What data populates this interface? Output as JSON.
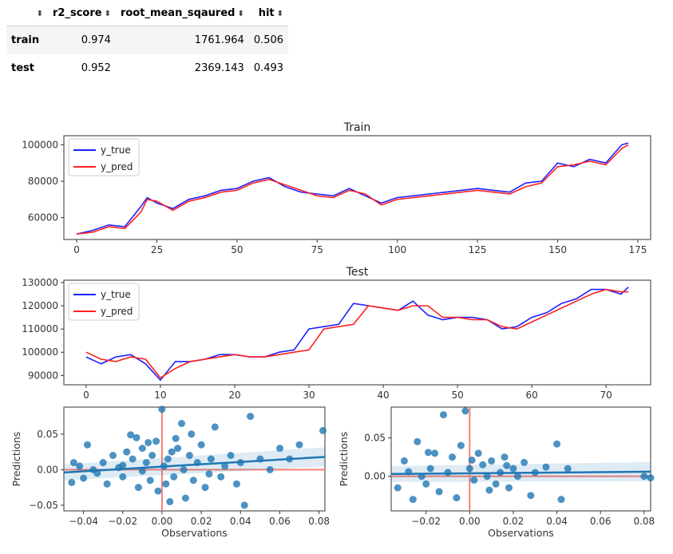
{
  "table": {
    "columns": [
      "r2_score",
      "root_mean_sqaured",
      "hit"
    ],
    "rows": [
      {
        "label": "train",
        "values": [
          "0.974",
          "1761.964",
          "0.506"
        ]
      },
      {
        "label": "test",
        "values": [
          "0.952",
          "2369.143",
          "0.493"
        ]
      }
    ],
    "sort_glyph": "⬍"
  },
  "colors": {
    "y_true": "#1f1fff",
    "y_pred": "#ff2020",
    "scatter": "#1f77b4",
    "reg": "#1f77b4",
    "ref": "#fa8072"
  },
  "chart_data": [
    {
      "type": "line",
      "title": "Train",
      "xlim": [
        -4,
        179
      ],
      "ylim": [
        48000,
        105000
      ],
      "xticks": [
        0,
        25,
        50,
        75,
        100,
        125,
        150,
        175
      ],
      "yticks": [
        60000,
        80000,
        100000
      ],
      "legend": "upper-left",
      "series": [
        {
          "name": "y_true",
          "x": [
            0,
            5,
            10,
            15,
            20,
            22,
            25,
            30,
            35,
            40,
            45,
            50,
            55,
            60,
            65,
            70,
            75,
            80,
            85,
            90,
            95,
            100,
            105,
            110,
            115,
            120,
            125,
            130,
            135,
            140,
            145,
            150,
            155,
            160,
            165,
            170,
            172
          ],
          "values": [
            51000,
            53000,
            56000,
            55000,
            66000,
            71000,
            68000,
            65000,
            70000,
            72000,
            75000,
            76000,
            80000,
            82000,
            77000,
            74000,
            73000,
            72000,
            76000,
            72000,
            68000,
            71000,
            72000,
            73000,
            74000,
            75000,
            76000,
            75000,
            74000,
            79000,
            80000,
            90000,
            88000,
            92000,
            90000,
            100000,
            101000
          ]
        },
        {
          "name": "y_pred",
          "x": [
            0,
            5,
            10,
            15,
            20,
            22,
            25,
            30,
            35,
            40,
            45,
            50,
            55,
            60,
            65,
            70,
            75,
            80,
            85,
            90,
            95,
            100,
            105,
            110,
            115,
            120,
            125,
            130,
            135,
            140,
            145,
            150,
            155,
            160,
            165,
            170,
            172
          ],
          "values": [
            51000,
            52000,
            55000,
            54000,
            63000,
            70000,
            69000,
            64000,
            69000,
            71000,
            74000,
            75000,
            79000,
            81000,
            78000,
            75000,
            72000,
            71000,
            75000,
            73000,
            67000,
            70000,
            71000,
            72000,
            73000,
            74000,
            75000,
            74000,
            73000,
            77000,
            79000,
            88000,
            89000,
            91000,
            89000,
            98000,
            100000
          ]
        }
      ]
    },
    {
      "type": "line",
      "title": "Test",
      "xlim": [
        -3,
        76
      ],
      "ylim": [
        86000,
        131000
      ],
      "xticks": [
        0,
        10,
        20,
        30,
        40,
        50,
        60,
        70
      ],
      "yticks": [
        90000,
        100000,
        110000,
        120000,
        130000
      ],
      "legend": "upper-left",
      "series": [
        {
          "name": "y_true",
          "x": [
            0,
            2,
            4,
            6,
            8,
            10,
            12,
            14,
            16,
            18,
            20,
            22,
            24,
            26,
            28,
            30,
            32,
            34,
            36,
            38,
            40,
            42,
            44,
            46,
            48,
            50,
            52,
            54,
            56,
            58,
            60,
            62,
            64,
            66,
            68,
            70,
            72,
            73
          ],
          "values": [
            98000,
            95000,
            98000,
            99000,
            95000,
            88000,
            96000,
            96000,
            97000,
            99000,
            99000,
            98000,
            98000,
            100000,
            101000,
            110000,
            111000,
            112000,
            121000,
            120000,
            119000,
            118000,
            122000,
            116000,
            114000,
            115000,
            115000,
            114000,
            110000,
            111000,
            115000,
            117000,
            121000,
            123000,
            127000,
            127000,
            125000,
            128000
          ]
        },
        {
          "name": "y_pred",
          "x": [
            0,
            2,
            4,
            6,
            8,
            10,
            12,
            14,
            16,
            18,
            20,
            22,
            24,
            26,
            28,
            30,
            32,
            34,
            36,
            38,
            40,
            42,
            44,
            46,
            48,
            50,
            52,
            54,
            56,
            58,
            60,
            62,
            64,
            66,
            68,
            70,
            72,
            73
          ],
          "values": [
            100000,
            97000,
            96000,
            98000,
            97000,
            89000,
            93000,
            96000,
            97000,
            98000,
            99000,
            98000,
            98000,
            99000,
            100000,
            101000,
            110000,
            111000,
            112000,
            120000,
            119000,
            118000,
            120000,
            120000,
            115000,
            115000,
            114000,
            114000,
            111000,
            110000,
            113000,
            116000,
            119000,
            122000,
            125000,
            127000,
            126000,
            126000
          ]
        }
      ]
    },
    {
      "type": "scatter",
      "xlabel": "Observations",
      "ylabel": "Predictions",
      "xlim": [
        -0.05,
        0.083
      ],
      "ylim": [
        -0.058,
        0.088
      ],
      "xticks": [
        -0.04,
        -0.02,
        0.0,
        0.02,
        0.04,
        0.06,
        0.08
      ],
      "xtick_labels": [
        "−0.04",
        "−0.02",
        "0.00",
        "0.02",
        "0.04",
        "0.06",
        "0.08"
      ],
      "yticks": [
        -0.05,
        0.0,
        0.05
      ],
      "ytick_labels": [
        "−0.05",
        "0.00",
        "0.05"
      ],
      "regression": {
        "x": [
          -0.05,
          0.083
        ],
        "y": [
          -0.004,
          0.018
        ]
      },
      "points": [
        [
          -0.045,
          0.01
        ],
        [
          -0.042,
          0.005
        ],
        [
          -0.04,
          -0.012
        ],
        [
          -0.038,
          0.035
        ],
        [
          -0.035,
          0.0
        ],
        [
          -0.033,
          -0.005
        ],
        [
          -0.03,
          0.01
        ],
        [
          -0.028,
          -0.02
        ],
        [
          -0.025,
          0.02
        ],
        [
          -0.022,
          0.003
        ],
        [
          -0.02,
          -0.01
        ],
        [
          -0.018,
          0.025
        ],
        [
          -0.015,
          0.015
        ],
        [
          -0.013,
          0.045
        ],
        [
          -0.012,
          -0.025
        ],
        [
          -0.01,
          0.03
        ],
        [
          -0.008,
          0.01
        ],
        [
          -0.006,
          -0.015
        ],
        [
          -0.005,
          0.02
        ],
        [
          -0.003,
          0.04
        ],
        [
          -0.002,
          -0.03
        ],
        [
          0.0,
          0.085
        ],
        [
          0.001,
          0.005
        ],
        [
          0.002,
          -0.02
        ],
        [
          0.003,
          0.015
        ],
        [
          0.004,
          -0.045
        ],
        [
          0.005,
          0.025
        ],
        [
          0.006,
          -0.01
        ],
        [
          0.008,
          0.03
        ],
        [
          0.01,
          0.065
        ],
        [
          0.011,
          0.0
        ],
        [
          0.012,
          -0.04
        ],
        [
          0.014,
          0.02
        ],
        [
          0.016,
          -0.015
        ],
        [
          0.018,
          0.01
        ],
        [
          0.02,
          0.035
        ],
        [
          0.022,
          -0.025
        ],
        [
          0.025,
          0.015
        ],
        [
          0.027,
          0.06
        ],
        [
          0.03,
          -0.01
        ],
        [
          0.032,
          0.005
        ],
        [
          0.035,
          0.02
        ],
        [
          0.038,
          -0.02
        ],
        [
          0.04,
          0.01
        ],
        [
          0.042,
          -0.05
        ],
        [
          0.045,
          0.075
        ],
        [
          0.05,
          0.015
        ],
        [
          0.055,
          0.0
        ],
        [
          0.06,
          0.03
        ],
        [
          0.065,
          0.015
        ],
        [
          0.07,
          0.035
        ],
        [
          0.082,
          0.055
        ],
        [
          -0.046,
          -0.018
        ],
        [
          -0.02,
          0.006
        ],
        [
          -0.01,
          -0.002
        ],
        [
          0.007,
          0.044
        ],
        [
          0.024,
          -0.006
        ],
        [
          0.015,
          0.05
        ],
        [
          -0.016,
          0.049
        ],
        [
          -0.007,
          0.038
        ]
      ]
    },
    {
      "type": "scatter",
      "xlabel": "Observations",
      "ylabel": "Predictions",
      "xlim": [
        -0.036,
        0.083
      ],
      "ylim": [
        -0.045,
        0.09
      ],
      "xticks": [
        -0.02,
        0.0,
        0.02,
        0.04,
        0.06,
        0.08
      ],
      "xtick_labels": [
        "−0.02",
        "0.00",
        "0.02",
        "0.04",
        "0.06",
        "0.08"
      ],
      "yticks": [
        0.0,
        0.05
      ],
      "ytick_labels": [
        "0.00",
        "0.05"
      ],
      "regression": {
        "x": [
          -0.036,
          0.083
        ],
        "y": [
          0.003,
          0.006
        ]
      },
      "points": [
        [
          -0.033,
          -0.015
        ],
        [
          -0.03,
          0.02
        ],
        [
          -0.026,
          -0.03
        ],
        [
          -0.024,
          0.045
        ],
        [
          -0.022,
          0.0
        ],
        [
          -0.02,
          -0.01
        ],
        [
          -0.018,
          0.01
        ],
        [
          -0.016,
          0.03
        ],
        [
          -0.014,
          -0.02
        ],
        [
          -0.012,
          0.08
        ],
        [
          -0.01,
          0.005
        ],
        [
          -0.008,
          0.025
        ],
        [
          -0.006,
          -0.028
        ],
        [
          -0.004,
          0.04
        ],
        [
          -0.002,
          0.085
        ],
        [
          0.0,
          0.01
        ],
        [
          0.002,
          -0.005
        ],
        [
          0.004,
          0.03
        ],
        [
          0.006,
          0.015
        ],
        [
          0.008,
          0.0
        ],
        [
          0.01,
          0.02
        ],
        [
          0.012,
          -0.01
        ],
        [
          0.014,
          0.005
        ],
        [
          0.016,
          0.025
        ],
        [
          0.018,
          -0.015
        ],
        [
          0.02,
          0.01
        ],
        [
          0.022,
          0.0
        ],
        [
          0.025,
          0.018
        ],
        [
          0.028,
          -0.025
        ],
        [
          0.03,
          0.005
        ],
        [
          0.035,
          0.012
        ],
        [
          0.04,
          0.042
        ],
        [
          0.042,
          -0.03
        ],
        [
          0.045,
          0.01
        ],
        [
          0.08,
          0.0
        ],
        [
          0.083,
          -0.002
        ],
        [
          -0.028,
          0.006
        ],
        [
          0.001,
          0.021
        ],
        [
          0.009,
          -0.018
        ],
        [
          -0.019,
          0.031
        ],
        [
          0.017,
          0.014
        ]
      ]
    }
  ]
}
